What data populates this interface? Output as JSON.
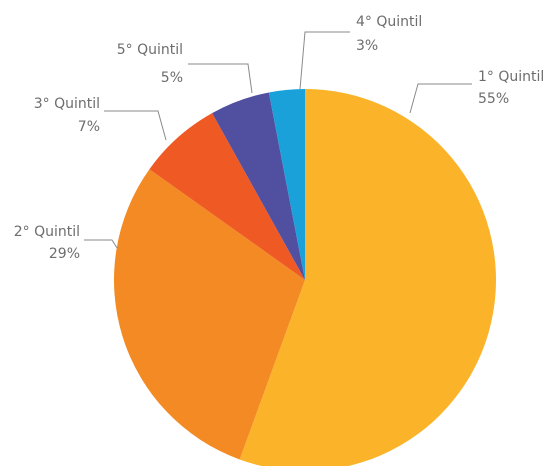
{
  "chart_data": {
    "type": "pie",
    "categories": [
      "1° Quintil",
      "2° Quintil",
      "3° Quintil",
      "5° Quintil",
      "4° Quintil"
    ],
    "values": [
      55,
      29,
      7,
      5,
      3
    ],
    "value_labels": [
      "55%",
      "29%",
      "7%",
      "5%",
      "3%"
    ],
    "colors": [
      "#fbb42a",
      "#f38a24",
      "#ef5a24",
      "#514f9f",
      "#1ba1da"
    ]
  }
}
